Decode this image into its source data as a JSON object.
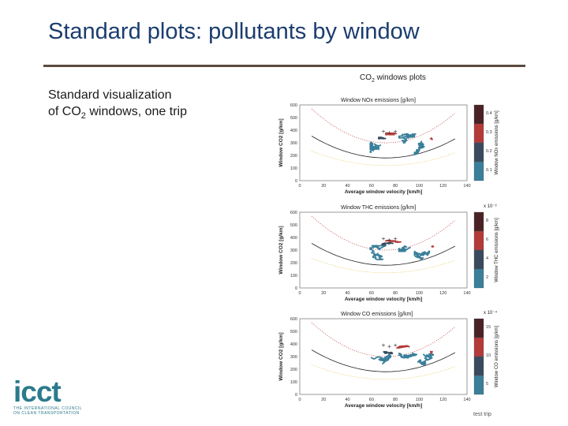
{
  "slide": {
    "title": "Standard plots: pollutants by window",
    "body_line1": "Standard visualization",
    "body_line2_pre": "of CO",
    "body_line2_sub": "2",
    "body_line2_post": " windows, one trip"
  },
  "figure": {
    "title_pre": "CO",
    "title_sub": "2",
    "title_post": " windows plots",
    "footer": "test trip",
    "x_label": "Average window velocity [km/h]",
    "y_label_pre": "Window CO",
    "y_label_sub": "2",
    "y_label_post": " [g/km]",
    "x_ticks": [
      "0",
      "20",
      "40",
      "60",
      "80",
      "100",
      "120",
      "140"
    ],
    "y_ticks": [
      "600",
      "500",
      "400",
      "300",
      "200",
      "100",
      "0"
    ],
    "panels": [
      {
        "title": "Window NOx emissions [g/km]",
        "colorbar_label": "Window NOx emissions [g/km]",
        "colorbar_ticks": [
          "0.4",
          "0.3",
          "0.2",
          "0.1"
        ],
        "multiplier": ""
      },
      {
        "title": "Window THC emissions [g/km]",
        "colorbar_label": "Window THC emissions [g/km]",
        "colorbar_ticks": [
          "8",
          "6",
          "4",
          "2"
        ],
        "multiplier": "x 10⁻³"
      },
      {
        "title": "Window CO emissions [g/km]",
        "colorbar_label": "Window CO emissions [g/km]",
        "colorbar_ticks": [
          "15",
          "10",
          "5"
        ],
        "multiplier": "x 10⁻⁴"
      }
    ],
    "colormap": [
      "#3a7f9a",
      "#3a4a5e",
      "#b43a3a",
      "#4a2226"
    ]
  },
  "logo": {
    "word": "icct",
    "tagline1": "THE INTERNATIONAL COUNCIL",
    "tagline2": "ON CLEAN TRANSPORTATION"
  }
}
